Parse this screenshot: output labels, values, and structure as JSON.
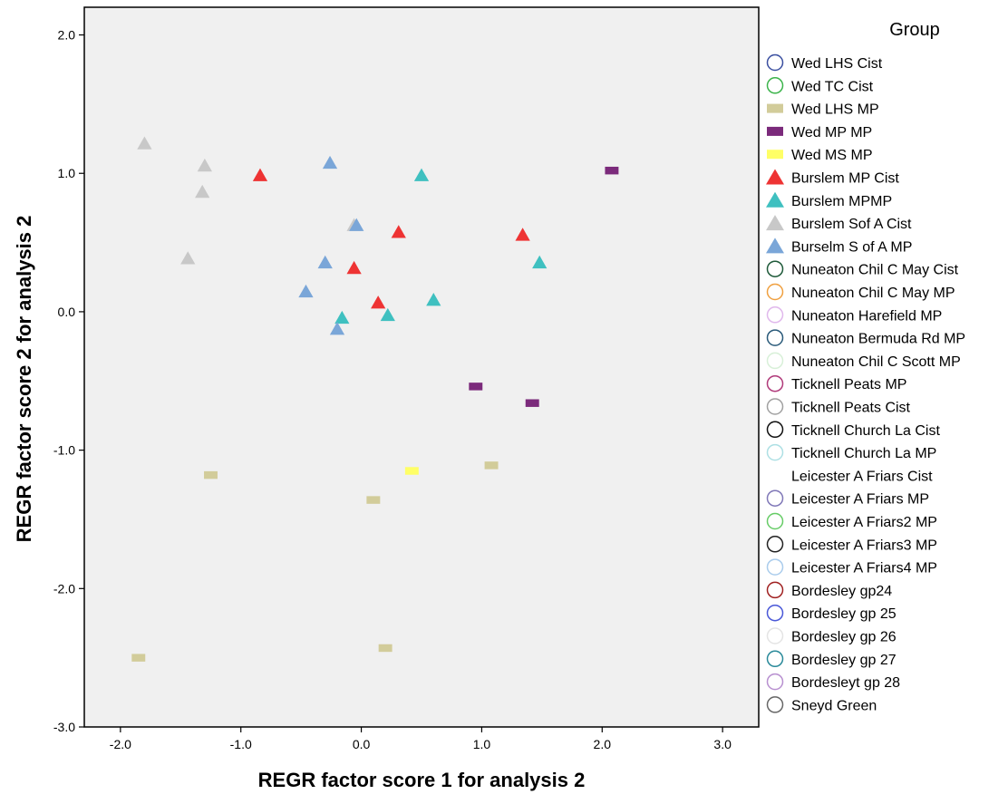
{
  "chart_data": {
    "type": "scatter",
    "xlabel": "REGR factor score   1 for analysis 2",
    "ylabel": "REGR factor score   2 for analysis 2",
    "xlim": [
      -2.3,
      3.3
    ],
    "ylim": [
      -3.0,
      2.2
    ],
    "xticks": [
      -2.0,
      -1.0,
      0.0,
      1.0,
      2.0,
      3.0
    ],
    "xtick_labels": [
      "-2.0",
      "-1.0",
      "0.0",
      "1.0",
      "2.0",
      "3.0"
    ],
    "yticks": [
      -3.0,
      -2.0,
      -1.0,
      0.0,
      1.0,
      2.0
    ],
    "ytick_labels": [
      "-3.0",
      "-2.0",
      "-1.0",
      "0.0",
      "1.0",
      "2.0"
    ],
    "grid": false,
    "plot_background": "#f0f0f0",
    "legend": {
      "title": "Group",
      "placement": "right",
      "entries": [
        {
          "label": "Wed LHS Cist",
          "marker": "circle",
          "color": "#3a4fa0"
        },
        {
          "label": "Wed TC Cist",
          "marker": "circle",
          "color": "#3cb44b"
        },
        {
          "label": "Wed LHS MP",
          "marker": "rect",
          "color": "#d2cc9a"
        },
        {
          "label": "Wed MP MP",
          "marker": "rect",
          "color": "#7b2a7b"
        },
        {
          "label": "Wed MS MP",
          "marker": "rect",
          "color": "#ffff66"
        },
        {
          "label": "Burslem MP Cist",
          "marker": "triangle",
          "color": "#ee3333"
        },
        {
          "label": "Burslem  MPMP",
          "marker": "triangle",
          "color": "#3fc0c0"
        },
        {
          "label": "Burslem Sof A Cist",
          "marker": "triangle",
          "color": "#c8c8c8"
        },
        {
          "label": "Burselm  S of A MP",
          "marker": "triangle",
          "color": "#7aa6d8"
        },
        {
          "label": "Nuneaton Chil C May Cist",
          "marker": "circle",
          "color": "#1f5a3a"
        },
        {
          "label": "Nuneaton Chil C May MP",
          "marker": "circle",
          "color": "#f0a040"
        },
        {
          "label": "Nuneaton Harefield MP",
          "marker": "circle",
          "color": "#e0b8ec"
        },
        {
          "label": "Nuneaton Bermuda Rd MP",
          "marker": "circle",
          "color": "#2a5a7a"
        },
        {
          "label": "Nuneaton Chil C Scott MP",
          "marker": "circle",
          "color": "#d8f0d8"
        },
        {
          "label": "Ticknell Peats MP",
          "marker": "circle",
          "color": "#b03a7a"
        },
        {
          "label": "Ticknell Peats Cist",
          "marker": "circle",
          "color": "#a0a0a0"
        },
        {
          "label": "Ticknell Church La Cist",
          "marker": "circle",
          "color": "#111111"
        },
        {
          "label": "Ticknell Church La MP",
          "marker": "circle",
          "color": "#aee0e4"
        },
        {
          "label": "Leicester A Friars Cist",
          "marker": "none",
          "color": ""
        },
        {
          "label": "Leicester A Friars MP",
          "marker": "circle",
          "color": "#8078b8"
        },
        {
          "label": "Leicester A Friars2 MP",
          "marker": "circle",
          "color": "#66cc66"
        },
        {
          "label": "Leicester A Friars3 MP",
          "marker": "circle",
          "color": "#222222"
        },
        {
          "label": "Leicester A Friars4 MP",
          "marker": "circle",
          "color": "#aaccec"
        },
        {
          "label": "Bordesley gp24",
          "marker": "circle",
          "color": "#a02020"
        },
        {
          "label": "Bordesley gp 25",
          "marker": "circle",
          "color": "#4a58d8"
        },
        {
          "label": "Bordesley gp 26",
          "marker": "circle",
          "color": "#e4e4e4"
        },
        {
          "label": "Bordesley gp 27",
          "marker": "circle",
          "color": "#2a8a9a"
        },
        {
          "label": "Bordesleyt gp 28",
          "marker": "circle",
          "color": "#b890d0"
        },
        {
          "label": "Sneyd Green",
          "marker": "circle",
          "color": "#666666"
        }
      ]
    },
    "series": [
      {
        "name": "Wed LHS MP",
        "marker": "rect",
        "color": "#d2cc9a",
        "points": [
          [
            -1.25,
            -1.18
          ],
          [
            0.1,
            -1.36
          ],
          [
            1.08,
            -1.11
          ],
          [
            -1.85,
            -2.5
          ],
          [
            0.2,
            -2.43
          ]
        ]
      },
      {
        "name": "Wed MP MP",
        "marker": "rect",
        "color": "#7b2a7b",
        "points": [
          [
            2.08,
            1.02
          ],
          [
            0.95,
            -0.54
          ],
          [
            1.42,
            -0.66
          ]
        ]
      },
      {
        "name": "Wed MS MP",
        "marker": "rect",
        "color": "#ffff66",
        "points": [
          [
            0.42,
            -1.15
          ]
        ]
      },
      {
        "name": "Burslem MP Cist",
        "marker": "triangle",
        "color": "#ee3333",
        "points": [
          [
            -0.84,
            0.99
          ],
          [
            0.31,
            0.58
          ],
          [
            1.34,
            0.56
          ],
          [
            -0.06,
            0.32
          ],
          [
            0.14,
            0.07
          ]
        ]
      },
      {
        "name": "Burslem  MPMP",
        "marker": "triangle",
        "color": "#3fc0c0",
        "points": [
          [
            0.5,
            0.99
          ],
          [
            1.48,
            0.36
          ],
          [
            0.6,
            0.09
          ],
          [
            -0.16,
            -0.04
          ],
          [
            0.22,
            -0.02
          ]
        ]
      },
      {
        "name": "Burslem Sof A Cist",
        "marker": "triangle",
        "color": "#c8c8c8",
        "points": [
          [
            -1.8,
            1.22
          ],
          [
            -1.3,
            1.06
          ],
          [
            -1.32,
            0.87
          ],
          [
            -1.44,
            0.39
          ],
          [
            -0.06,
            0.63
          ]
        ]
      },
      {
        "name": "Burselm  S of A MP",
        "marker": "triangle",
        "color": "#7aa6d8",
        "points": [
          [
            -0.26,
            1.08
          ],
          [
            -0.04,
            0.63
          ],
          [
            -0.3,
            0.36
          ],
          [
            -0.46,
            0.15
          ],
          [
            -0.2,
            -0.12
          ]
        ]
      }
    ]
  }
}
